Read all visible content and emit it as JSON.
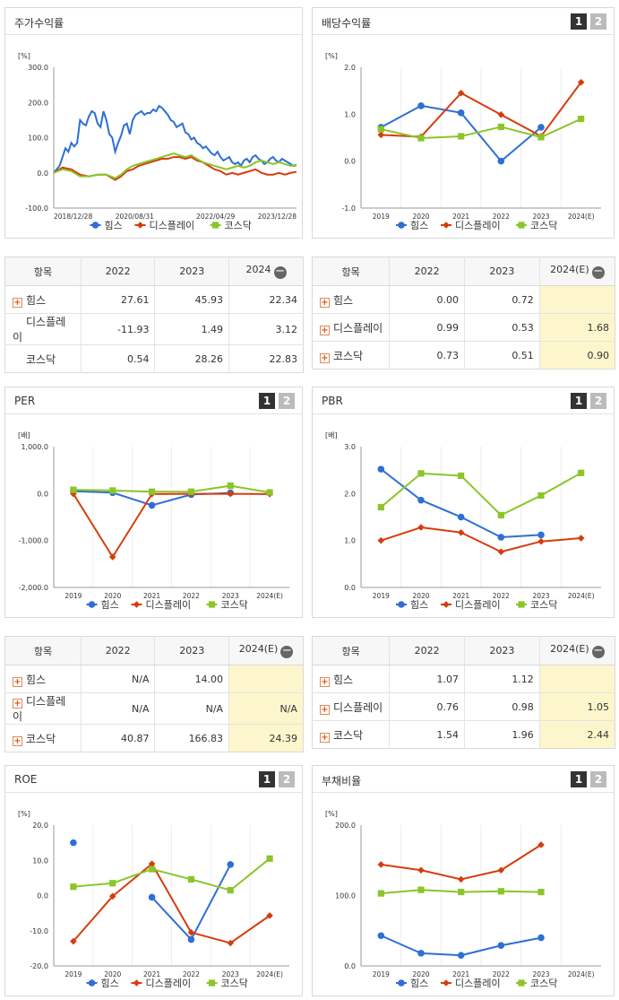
{
  "palette": {
    "series": [
      "#2e6fd4",
      "#d63c0c",
      "#8bc529"
    ]
  },
  "legend": [
    "힘스",
    "디스플레이",
    "코스닥"
  ],
  "panels": {
    "stock": {
      "title": "주가수익률"
    },
    "dividend": {
      "title": "배당수익률",
      "tab1": "1",
      "tab2": "2"
    },
    "per": {
      "title": "PER",
      "tab1": "1",
      "tab2": "2"
    },
    "pbr": {
      "title": "PBR",
      "tab1": "1",
      "tab2": "2"
    },
    "roe": {
      "title": "ROE",
      "tab1": "1",
      "tab2": "2"
    },
    "debt": {
      "title": "부채비율",
      "tab1": "1",
      "tab2": "2"
    }
  },
  "tables": {
    "stock": {
      "headers": [
        "항목",
        "2022",
        "2023",
        "2024"
      ],
      "rows": [
        {
          "label": "힘스",
          "plus": true,
          "values": [
            "27.61",
            "45.93",
            "22.34"
          ]
        },
        {
          "label": "디스플레이",
          "plus": false,
          "values": [
            "-11.93",
            "1.49",
            "3.12"
          ]
        },
        {
          "label": "코스닥",
          "plus": false,
          "values": [
            "0.54",
            "28.26",
            "22.83"
          ]
        }
      ]
    },
    "dividend": {
      "headers": [
        "항목",
        "2022",
        "2023",
        "2024(E)"
      ],
      "rows": [
        {
          "label": "힘스",
          "plus": true,
          "values": [
            "0.00",
            "0.72",
            ""
          ]
        },
        {
          "label": "디스플레이",
          "plus": true,
          "values": [
            "0.99",
            "0.53",
            "1.68"
          ]
        },
        {
          "label": "코스닥",
          "plus": true,
          "values": [
            "0.73",
            "0.51",
            "0.90"
          ]
        }
      ]
    },
    "per": {
      "headers": [
        "항목",
        "2022",
        "2023",
        "2024(E)"
      ],
      "rows": [
        {
          "label": "힘스",
          "plus": true,
          "values": [
            "N/A",
            "14.00",
            ""
          ]
        },
        {
          "label": "디스플레이",
          "plus": true,
          "values": [
            "N/A",
            "N/A",
            "N/A"
          ]
        },
        {
          "label": "코스닥",
          "plus": true,
          "values": [
            "40.87",
            "166.83",
            "24.39"
          ]
        }
      ]
    },
    "pbr": {
      "headers": [
        "항목",
        "2022",
        "2023",
        "2024(E)"
      ],
      "rows": [
        {
          "label": "힘스",
          "plus": true,
          "values": [
            "1.07",
            "1.12",
            ""
          ]
        },
        {
          "label": "디스플레이",
          "plus": true,
          "values": [
            "0.76",
            "0.98",
            "1.05"
          ]
        },
        {
          "label": "코스닥",
          "plus": true,
          "values": [
            "1.54",
            "1.96",
            "2.44"
          ]
        }
      ]
    }
  },
  "chart_data": [
    {
      "id": "stock",
      "type": "line",
      "unit": "[%]",
      "ylim": [
        -100,
        300
      ],
      "yticks": [
        "300.0",
        "200.0",
        "100.0",
        "0.0",
        "-100.0"
      ],
      "xtick_labels": [
        "2018/12/28",
        "2020/08/31",
        "2022/04/29",
        "2023/12/28"
      ],
      "x_range": [
        "2018-12-28",
        "2024-08-31"
      ],
      "series": [
        {
          "name": "힘스",
          "points": [
            [
              0,
              0
            ],
            [
              2,
              20
            ],
            [
              4,
              70
            ],
            [
              5,
              60
            ],
            [
              6,
              85
            ],
            [
              7,
              75
            ],
            [
              8,
              85
            ],
            [
              9,
              150
            ],
            [
              10,
              140
            ],
            [
              11,
              135
            ],
            [
              12,
              160
            ],
            [
              13,
              175
            ],
            [
              14,
              170
            ],
            [
              15,
              140
            ],
            [
              16,
              130
            ],
            [
              17,
              175
            ],
            [
              18,
              150
            ],
            [
              19,
              110
            ],
            [
              20,
              100
            ],
            [
              21,
              60
            ],
            [
              22,
              85
            ],
            [
              23,
              105
            ],
            [
              24,
              135
            ],
            [
              25,
              140
            ],
            [
              26,
              110
            ],
            [
              27,
              150
            ],
            [
              28,
              165
            ],
            [
              29,
              170
            ],
            [
              30,
              175
            ],
            [
              31,
              165
            ],
            [
              32,
              170
            ],
            [
              33,
              170
            ],
            [
              34,
              180
            ],
            [
              35,
              175
            ],
            [
              36,
              190
            ],
            [
              37,
              185
            ],
            [
              38,
              175
            ],
            [
              39,
              165
            ],
            [
              40,
              150
            ],
            [
              41,
              145
            ],
            [
              42,
              130
            ],
            [
              43,
              135
            ],
            [
              44,
              140
            ],
            [
              45,
              115
            ],
            [
              46,
              110
            ],
            [
              47,
              95
            ],
            [
              48,
              100
            ],
            [
              49,
              85
            ],
            [
              50,
              80
            ],
            [
              51,
              70
            ],
            [
              52,
              75
            ],
            [
              53,
              65
            ],
            [
              54,
              55
            ],
            [
              55,
              50
            ],
            [
              56,
              60
            ],
            [
              57,
              45
            ],
            [
              58,
              35
            ],
            [
              59,
              40
            ],
            [
              60,
              45
            ],
            [
              61,
              30
            ],
            [
              62,
              25
            ],
            [
              63,
              30
            ],
            [
              64,
              20
            ],
            [
              65,
              35
            ],
            [
              66,
              40
            ],
            [
              67,
              30
            ],
            [
              68,
              45
            ],
            [
              69,
              50
            ],
            [
              70,
              40
            ],
            [
              71,
              35
            ],
            [
              72,
              25
            ],
            [
              73,
              30
            ],
            [
              74,
              40
            ],
            [
              75,
              45
            ],
            [
              76,
              35
            ],
            [
              77,
              30
            ],
            [
              78,
              40
            ],
            [
              79,
              35
            ],
            [
              80,
              30
            ],
            [
              81,
              25
            ],
            [
              82,
              20
            ],
            [
              83,
              22
            ]
          ]
        },
        {
          "name": "디스플레이",
          "points": [
            [
              0,
              0
            ],
            [
              3,
              15
            ],
            [
              6,
              10
            ],
            [
              9,
              -5
            ],
            [
              12,
              -10
            ],
            [
              15,
              -5
            ],
            [
              18,
              -5
            ],
            [
              21,
              -20
            ],
            [
              23,
              -10
            ],
            [
              25,
              5
            ],
            [
              27,
              10
            ],
            [
              29,
              20
            ],
            [
              31,
              25
            ],
            [
              33,
              30
            ],
            [
              35,
              35
            ],
            [
              37,
              40
            ],
            [
              39,
              40
            ],
            [
              41,
              45
            ],
            [
              43,
              45
            ],
            [
              45,
              40
            ],
            [
              47,
              45
            ],
            [
              49,
              35
            ],
            [
              51,
              30
            ],
            [
              53,
              20
            ],
            [
              55,
              10
            ],
            [
              57,
              5
            ],
            [
              59,
              -5
            ],
            [
              61,
              0
            ],
            [
              63,
              -5
            ],
            [
              65,
              0
            ],
            [
              67,
              5
            ],
            [
              69,
              10
            ],
            [
              71,
              0
            ],
            [
              73,
              -5
            ],
            [
              75,
              -5
            ],
            [
              77,
              0
            ],
            [
              79,
              -5
            ],
            [
              81,
              0
            ],
            [
              83,
              3
            ]
          ]
        },
        {
          "name": "코스닥",
          "points": [
            [
              0,
              0
            ],
            [
              3,
              10
            ],
            [
              6,
              5
            ],
            [
              9,
              -10
            ],
            [
              12,
              -10
            ],
            [
              15,
              -5
            ],
            [
              18,
              -5
            ],
            [
              21,
              -15
            ],
            [
              23,
              -5
            ],
            [
              25,
              10
            ],
            [
              27,
              20
            ],
            [
              29,
              25
            ],
            [
              31,
              30
            ],
            [
              33,
              35
            ],
            [
              35,
              40
            ],
            [
              37,
              45
            ],
            [
              39,
              50
            ],
            [
              41,
              55
            ],
            [
              43,
              50
            ],
            [
              45,
              45
            ],
            [
              47,
              50
            ],
            [
              49,
              40
            ],
            [
              51,
              30
            ],
            [
              53,
              25
            ],
            [
              55,
              20
            ],
            [
              57,
              15
            ],
            [
              59,
              10
            ],
            [
              61,
              15
            ],
            [
              63,
              20
            ],
            [
              65,
              15
            ],
            [
              67,
              20
            ],
            [
              69,
              30
            ],
            [
              71,
              35
            ],
            [
              73,
              30
            ],
            [
              75,
              25
            ],
            [
              77,
              30
            ],
            [
              79,
              25
            ],
            [
              81,
              20
            ],
            [
              83,
              23
            ]
          ]
        }
      ]
    },
    {
      "id": "dividend",
      "type": "line",
      "unit": "[%]",
      "ylim": [
        -1,
        2
      ],
      "yticks": [
        "2.0",
        "1.0",
        "0.0",
        "-1.0"
      ],
      "categories": [
        "2019",
        "2020",
        "2021",
        "2022",
        "2023",
        "2024(E)"
      ],
      "series": [
        {
          "name": "힘스",
          "values": [
            0.72,
            1.18,
            1.03,
            0.0,
            0.72,
            null
          ]
        },
        {
          "name": "디스플레이",
          "values": [
            0.56,
            0.52,
            1.45,
            0.99,
            0.53,
            1.68
          ]
        },
        {
          "name": "코스닥",
          "values": [
            0.68,
            0.49,
            0.53,
            0.73,
            0.51,
            0.9
          ]
        }
      ]
    },
    {
      "id": "per",
      "type": "line",
      "unit": "[배]",
      "ylim": [
        -2000,
        1000
      ],
      "yticks": [
        "1,000.0",
        "0.0",
        "-1,000.0",
        "-2,000.0"
      ],
      "categories": [
        "2019",
        "2020",
        "2021",
        "2022",
        "2023",
        "2024(E)"
      ],
      "series": [
        {
          "name": "힘스",
          "values": [
            50,
            20,
            -250,
            -20,
            14,
            null
          ]
        },
        {
          "name": "디스플레이",
          "values": [
            -5,
            -1350,
            -10,
            -5,
            -5,
            -10
          ]
        },
        {
          "name": "코스닥",
          "values": [
            80,
            65,
            40,
            41,
            167,
            24
          ]
        }
      ]
    },
    {
      "id": "pbr",
      "type": "line",
      "unit": "[배]",
      "ylim": [
        0,
        3
      ],
      "yticks": [
        "3.0",
        "2.0",
        "1.0",
        "0.0"
      ],
      "categories": [
        "2019",
        "2020",
        "2021",
        "2022",
        "2023",
        "2024(E)"
      ],
      "series": [
        {
          "name": "힘스",
          "values": [
            2.52,
            1.86,
            1.5,
            1.07,
            1.12,
            null
          ]
        },
        {
          "name": "디스플레이",
          "values": [
            1.0,
            1.28,
            1.17,
            0.76,
            0.98,
            1.05
          ]
        },
        {
          "name": "코스닥",
          "values": [
            1.71,
            2.43,
            2.38,
            1.54,
            1.96,
            2.44
          ]
        }
      ]
    },
    {
      "id": "roe",
      "type": "line",
      "unit": "[%]",
      "ylim": [
        -20,
        20
      ],
      "yticks": [
        "20.0",
        "10.0",
        "0.0",
        "-10.0",
        "-20.0"
      ],
      "categories": [
        "2019",
        "2020",
        "2021",
        "2022",
        "2023",
        "2024(E)"
      ],
      "series": [
        {
          "name": "힘스",
          "values": [
            15.0,
            null,
            -0.5,
            -12.5,
            8.8,
            null
          ]
        },
        {
          "name": "디스플레이",
          "values": [
            -13.0,
            -0.2,
            9.0,
            -10.5,
            -13.5,
            -5.7
          ]
        },
        {
          "name": "코스닥",
          "values": [
            2.5,
            3.5,
            7.5,
            4.6,
            1.5,
            10.5
          ]
        }
      ]
    },
    {
      "id": "debt",
      "type": "line",
      "unit": "[%]",
      "ylim": [
        0,
        200
      ],
      "yticks": [
        "200.0",
        "100.0",
        "0.0"
      ],
      "categories": [
        "2019",
        "2020",
        "2021",
        "2022",
        "2023",
        "2024(E)"
      ],
      "series": [
        {
          "name": "힘스",
          "values": [
            43,
            18,
            15,
            29,
            40,
            null
          ]
        },
        {
          "name": "디스플레이",
          "values": [
            144,
            136,
            123,
            136,
            172,
            null
          ]
        },
        {
          "name": "코스닥",
          "values": [
            103,
            108,
            105,
            106,
            105,
            null
          ]
        }
      ]
    }
  ]
}
